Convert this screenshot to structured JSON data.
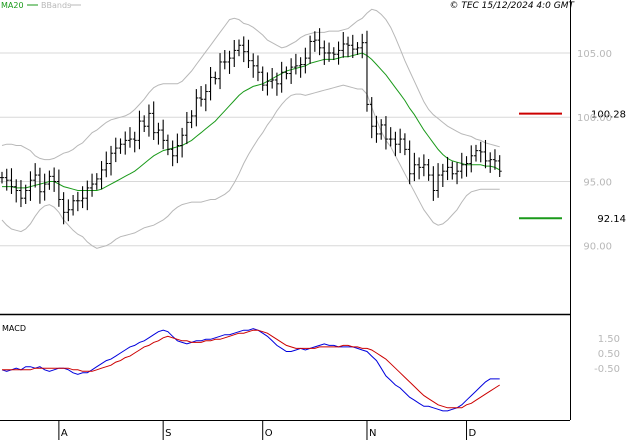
{
  "copyright": "© TEC 15/12/2024 4:0 GMT",
  "legend": [
    {
      "label": "MA20",
      "color": "#1a9a1a"
    },
    {
      "label": "BBands",
      "color": "#b8b8b8"
    }
  ],
  "macd_label": "MACD",
  "levels": [
    {
      "value": "100.28",
      "label": "100.28",
      "color": "#cc0000"
    },
    {
      "value": "92.14",
      "label": "92.14",
      "color": "#1a9a1a"
    }
  ],
  "chart_data": [
    {
      "type": "line",
      "title": "",
      "panel": "price",
      "y_ticks": [
        {
          "value": 90.0,
          "label": "90.00"
        },
        {
          "value": 95.0,
          "label": "95.00"
        },
        {
          "value": 100.0,
          "label": "100.00"
        },
        {
          "value": 105.0,
          "label": "105.00"
        }
      ],
      "ylim": [
        85.0,
        108.5
      ],
      "x_ticks": [
        {
          "label": "A",
          "index": 12
        },
        {
          "label": "S",
          "index": 34
        },
        {
          "label": "O",
          "index": 55
        },
        {
          "label": "N",
          "index": 77
        },
        {
          "label": "D",
          "index": 98
        }
      ],
      "n_bars": 108,
      "close": [
        95.3,
        95.1,
        94.6,
        94.3,
        93.7,
        94.3,
        95.1,
        95.5,
        94.2,
        94.8,
        95.4,
        95.0,
        93.6,
        92.6,
        92.8,
        93.5,
        93.5,
        93.7,
        94.5,
        94.8,
        95.2,
        95.9,
        96.4,
        97.2,
        97.6,
        97.9,
        98.2,
        98.3,
        98.2,
        99.7,
        99.3,
        100.3,
        98.8,
        99.0,
        98.2,
        97.5,
        97.0,
        97.8,
        98.6,
        99.6,
        100.1,
        101.5,
        101.4,
        102.0,
        103.1,
        103.0,
        104.3,
        104.3,
        104.6,
        105.2,
        105.6,
        105.1,
        104.4,
        104.0,
        103.5,
        102.5,
        102.8,
        102.9,
        102.6,
        103.5,
        103.4,
        103.9,
        104.0,
        104.1,
        104.6,
        105.9,
        106.0,
        105.4,
        105.0,
        105.0,
        104.9,
        105.2,
        105.7,
        105.6,
        105.3,
        105.4,
        105.8,
        101.0,
        99.3,
        98.7,
        99.4,
        98.3,
        98.3,
        97.9,
        98.3,
        97.5,
        95.6,
        96.3,
        96.1,
        96.3,
        95.5,
        94.3,
        95.5,
        95.8,
        96.1,
        95.6,
        95.8,
        96.3,
        96.4,
        97.0,
        97.4,
        97.3,
        96.6,
        96.7,
        96.6,
        95.8,
        0,
        0
      ],
      "ma20": [
        94.6,
        94.6,
        94.6,
        94.5,
        94.5,
        94.5,
        94.6,
        94.7,
        94.8,
        94.9,
        95.0,
        95.0,
        94.8,
        94.6,
        94.5,
        94.4,
        94.3,
        94.3,
        94.3,
        94.3,
        94.3,
        94.4,
        94.6,
        94.8,
        95.0,
        95.2,
        95.4,
        95.6,
        95.8,
        96.1,
        96.4,
        96.7,
        97.0,
        97.2,
        97.4,
        97.5,
        97.6,
        97.7,
        97.8,
        98.0,
        98.2,
        98.5,
        98.8,
        99.1,
        99.4,
        99.7,
        100.1,
        100.5,
        100.9,
        101.3,
        101.7,
        102.0,
        102.2,
        102.4,
        102.5,
        102.6,
        102.8,
        103.0,
        103.2,
        103.4,
        103.6,
        103.7,
        103.8,
        103.9,
        104.0,
        104.2,
        104.3,
        104.4,
        104.5,
        104.5,
        104.5,
        104.6,
        104.7,
        104.7,
        104.8,
        104.9,
        105.0,
        104.8,
        104.5,
        104.1,
        103.7,
        103.3,
        102.8,
        102.3,
        101.8,
        101.3,
        100.7,
        100.2,
        99.6,
        99.0,
        98.5,
        98.0,
        97.5,
        97.1,
        96.8,
        96.6,
        96.5,
        96.4,
        96.3,
        96.3,
        96.3,
        96.3,
        96.2,
        96.2,
        96.1,
        95.9,
        0,
        0
      ],
      "bb_upper": [
        97.8,
        97.9,
        97.9,
        97.8,
        97.8,
        97.6,
        97.4,
        97.0,
        96.8,
        96.7,
        96.7,
        96.8,
        97.0,
        97.2,
        97.3,
        97.5,
        97.8,
        98.0,
        98.4,
        98.8,
        99.0,
        99.3,
        99.6,
        99.8,
        99.9,
        100.0,
        100.1,
        100.3,
        100.6,
        101.0,
        101.4,
        101.9,
        102.3,
        102.5,
        102.6,
        102.6,
        102.6,
        102.6,
        102.8,
        103.2,
        103.6,
        104.1,
        104.6,
        105.1,
        105.6,
        106.1,
        106.6,
        107.1,
        107.6,
        107.7,
        107.6,
        107.3,
        107.2,
        107.0,
        106.7,
        106.4,
        106.0,
        105.8,
        105.6,
        105.4,
        105.5,
        105.7,
        105.9,
        106.2,
        106.4,
        106.5,
        106.6,
        106.6,
        106.6,
        106.7,
        106.7,
        106.7,
        106.8,
        106.9,
        107.2,
        107.5,
        107.7,
        108.1,
        108.4,
        108.3,
        108.0,
        107.6,
        107.0,
        106.2,
        105.3,
        104.4,
        103.6,
        102.8,
        102.0,
        101.2,
        100.6,
        100.2,
        99.9,
        99.6,
        99.3,
        99.1,
        98.9,
        98.7,
        98.6,
        98.5,
        98.3,
        98.2,
        98.0,
        97.9,
        97.8,
        97.7,
        0,
        0
      ],
      "bb_lower": [
        92.0,
        91.6,
        91.3,
        91.2,
        91.1,
        91.3,
        91.7,
        92.3,
        92.8,
        93.1,
        93.2,
        93.0,
        92.6,
        92.0,
        91.6,
        91.2,
        90.9,
        90.7,
        90.3,
        90.0,
        89.8,
        89.9,
        90.0,
        90.2,
        90.5,
        90.7,
        90.8,
        90.9,
        91.0,
        91.2,
        91.4,
        91.5,
        91.6,
        91.8,
        92.0,
        92.3,
        92.7,
        93.0,
        93.2,
        93.3,
        93.4,
        93.4,
        93.4,
        93.5,
        93.6,
        93.6,
        93.8,
        94.0,
        94.3,
        94.9,
        95.6,
        96.4,
        97.1,
        97.7,
        98.3,
        98.8,
        99.4,
        99.9,
        100.5,
        101.0,
        101.4,
        101.7,
        101.8,
        101.8,
        101.7,
        101.8,
        101.9,
        102.0,
        102.1,
        102.2,
        102.3,
        102.4,
        102.5,
        102.4,
        102.3,
        102.2,
        102.2,
        101.8,
        100.8,
        99.8,
        98.9,
        98.2,
        97.7,
        97.0,
        96.3,
        95.6,
        94.9,
        94.2,
        93.5,
        92.8,
        92.3,
        91.8,
        91.6,
        91.7,
        92.0,
        92.4,
        92.8,
        93.4,
        93.9,
        94.2,
        94.3,
        94.4,
        94.4,
        94.4,
        94.4,
        94.4,
        0,
        0
      ]
    },
    {
      "type": "line",
      "title": "MACD",
      "panel": "macd",
      "y_ticks": [
        {
          "value": 1.5,
          "label": "1.50"
        },
        {
          "value": 0.5,
          "label": "0.50"
        },
        {
          "value": -0.5,
          "label": "-0.50"
        }
      ],
      "ylim": [
        -3.9,
        2.8
      ],
      "series": [
        {
          "key": "macd",
          "color": "#0000dd",
          "values": [
            -0.6,
            -0.7,
            -0.6,
            -0.5,
            -0.6,
            -0.4,
            -0.4,
            -0.5,
            -0.4,
            -0.6,
            -0.7,
            -0.6,
            -0.5,
            -0.5,
            -0.6,
            -0.8,
            -0.9,
            -0.8,
            -0.8,
            -0.6,
            -0.4,
            -0.2,
            0.0,
            0.1,
            0.3,
            0.5,
            0.7,
            0.9,
            1.0,
            1.2,
            1.3,
            1.5,
            1.7,
            1.9,
            2.0,
            1.9,
            1.6,
            1.3,
            1.2,
            1.1,
            1.2,
            1.3,
            1.3,
            1.4,
            1.4,
            1.5,
            1.6,
            1.7,
            1.7,
            1.8,
            1.9,
            2.0,
            2.0,
            2.1,
            2.0,
            1.8,
            1.6,
            1.3,
            1.0,
            0.8,
            0.6,
            0.6,
            0.7,
            0.8,
            0.7,
            0.8,
            0.9,
            1.0,
            1.1,
            1.0,
            1.0,
            0.9,
            0.9,
            0.9,
            0.9,
            0.8,
            0.7,
            0.6,
            0.3,
            0.0,
            -0.5,
            -1.0,
            -1.3,
            -1.6,
            -1.8,
            -2.1,
            -2.4,
            -2.6,
            -2.8,
            -3.0,
            -3.0,
            -3.1,
            -3.2,
            -3.3,
            -3.3,
            -3.2,
            -3.1,
            -2.9,
            -2.6,
            -2.3,
            -2.0,
            -1.7,
            -1.4,
            -1.2,
            -1.2,
            -1.2,
            0,
            0
          ]
        },
        {
          "key": "signal",
          "color": "#cc0000",
          "values": [
            -0.6,
            -0.6,
            -0.6,
            -0.6,
            -0.6,
            -0.6,
            -0.6,
            -0.5,
            -0.5,
            -0.5,
            -0.5,
            -0.5,
            -0.5,
            -0.5,
            -0.5,
            -0.6,
            -0.6,
            -0.7,
            -0.7,
            -0.7,
            -0.6,
            -0.5,
            -0.4,
            -0.3,
            -0.1,
            0.0,
            0.2,
            0.3,
            0.5,
            0.7,
            0.9,
            1.0,
            1.2,
            1.3,
            1.5,
            1.6,
            1.5,
            1.4,
            1.3,
            1.3,
            1.2,
            1.2,
            1.2,
            1.3,
            1.3,
            1.4,
            1.4,
            1.5,
            1.6,
            1.7,
            1.8,
            1.8,
            1.9,
            2.0,
            2.0,
            1.9,
            1.8,
            1.6,
            1.4,
            1.2,
            1.0,
            0.9,
            0.8,
            0.8,
            0.8,
            0.8,
            0.8,
            0.9,
            0.9,
            0.9,
            0.9,
            0.9,
            1.0,
            1.0,
            0.9,
            0.9,
            0.8,
            0.8,
            0.7,
            0.5,
            0.3,
            0.1,
            -0.2,
            -0.5,
            -0.8,
            -1.1,
            -1.4,
            -1.7,
            -2.0,
            -2.3,
            -2.5,
            -2.7,
            -2.9,
            -3.0,
            -3.1,
            -3.1,
            -3.1,
            -3.1,
            -2.9,
            -2.8,
            -2.6,
            -2.4,
            -2.2,
            -2.0,
            -1.8,
            -1.6,
            0,
            0
          ]
        }
      ]
    }
  ]
}
